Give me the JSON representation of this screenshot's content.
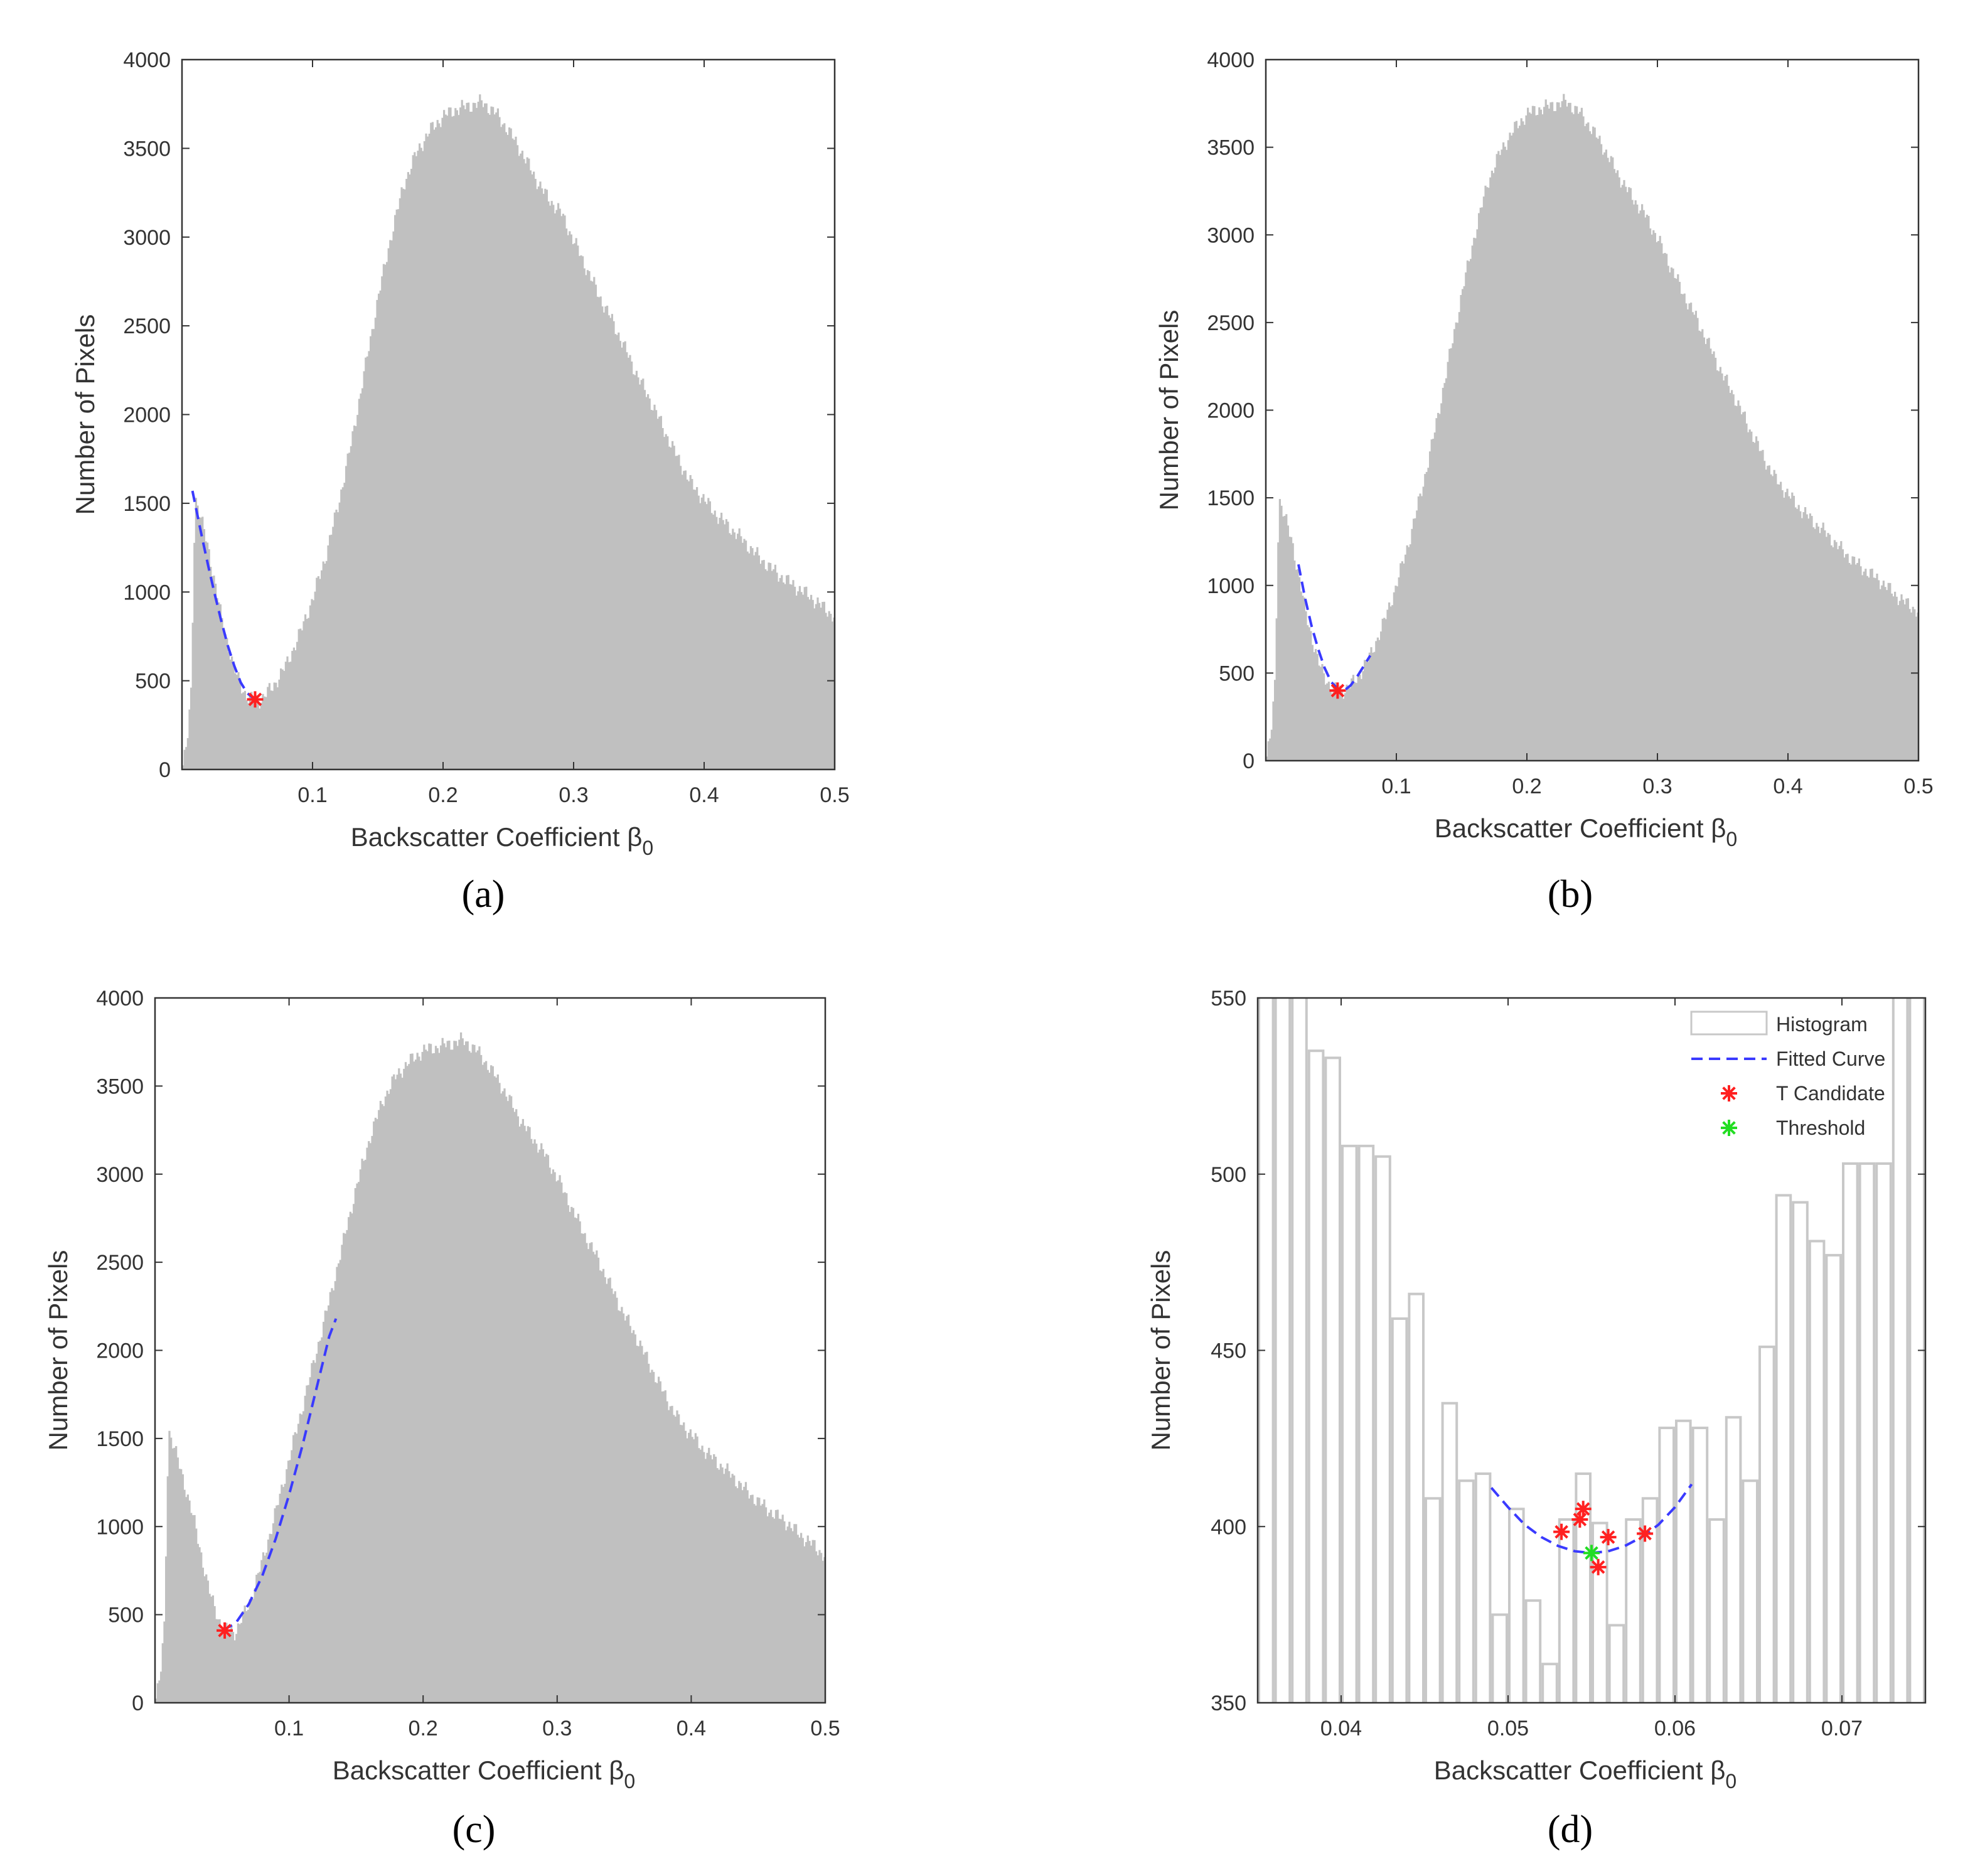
{
  "chart_data": [
    {
      "panel_label": "(a)",
      "type": "bar",
      "xlabel": "Backscatter Coefficient β",
      "xlabel_sub": "0",
      "ylabel": "Number of Pixels",
      "xlim": [
        0.0,
        0.5
      ],
      "ylim": [
        0,
        4000
      ],
      "xticks": [
        0.1,
        0.2,
        0.3,
        0.4,
        0.5
      ],
      "xtick_labels": [
        "0.1",
        "0.2",
        "0.3",
        "0.4",
        "0.5"
      ],
      "yticks": [
        0,
        500,
        1000,
        1500,
        2000,
        2500,
        3000,
        3500,
        4000
      ],
      "ytick_labels": [
        "0",
        "500",
        "1000",
        "1500",
        "2000",
        "2500",
        "3000",
        "3500",
        "4000"
      ],
      "bar_color": "#c0c0c0",
      "histogram_envelope": {
        "x": [
          0.0,
          0.004,
          0.007,
          0.01,
          0.02,
          0.03,
          0.04,
          0.05,
          0.06,
          0.07,
          0.08,
          0.09,
          0.1,
          0.11,
          0.12,
          0.13,
          0.14,
          0.15,
          0.16,
          0.17,
          0.18,
          0.19,
          0.2,
          0.21,
          0.22,
          0.23,
          0.24,
          0.25,
          0.26,
          0.27,
          0.28,
          0.29,
          0.3,
          0.31,
          0.32,
          0.33,
          0.34,
          0.35,
          0.36,
          0.37,
          0.38,
          0.39,
          0.4,
          0.41,
          0.42,
          0.43,
          0.44,
          0.45,
          0.46,
          0.47,
          0.48,
          0.49,
          0.5
        ],
        "y": [
          0,
          150,
          450,
          1540,
          1250,
          860,
          560,
          400,
          390,
          470,
          590,
          760,
          960,
          1200,
          1500,
          1850,
          2250,
          2650,
          3000,
          3300,
          3480,
          3600,
          3680,
          3720,
          3740,
          3760,
          3700,
          3600,
          3480,
          3340,
          3220,
          3140,
          2980,
          2820,
          2660,
          2520,
          2360,
          2200,
          2060,
          1900,
          1750,
          1610,
          1520,
          1430,
          1360,
          1290,
          1210,
          1140,
          1080,
          1030,
          980,
          920,
          860
        ]
      },
      "fitted_curve": {
        "color": "#3a3aff",
        "x": [
          0.008,
          0.015,
          0.02,
          0.025,
          0.03,
          0.035,
          0.04,
          0.045,
          0.05,
          0.055,
          0.06
        ],
        "y": [
          1570,
          1320,
          1150,
          990,
          840,
          700,
          585,
          490,
          430,
          400,
          395
        ]
      },
      "t_candidates": {
        "color": "#ff2020",
        "x": [
          0.056
        ],
        "y": [
          395
        ]
      }
    },
    {
      "panel_label": "(b)",
      "type": "bar",
      "xlabel": "Backscatter Coefficient β",
      "xlabel_sub": "0",
      "ylabel": "Number of Pixels",
      "xlim": [
        0.0,
        0.5
      ],
      "ylim": [
        0,
        4000
      ],
      "xticks": [
        0.1,
        0.2,
        0.3,
        0.4,
        0.5
      ],
      "xtick_labels": [
        "0.1",
        "0.2",
        "0.3",
        "0.4",
        "0.5"
      ],
      "yticks": [
        0,
        500,
        1000,
        1500,
        2000,
        2500,
        3000,
        3500,
        4000
      ],
      "ytick_labels": [
        "0",
        "500",
        "1000",
        "1500",
        "2000",
        "2500",
        "3000",
        "3500",
        "4000"
      ],
      "bar_color": "#c0c0c0",
      "histogram_envelope": {
        "x": [
          0.0,
          0.004,
          0.007,
          0.01,
          0.02,
          0.03,
          0.04,
          0.05,
          0.06,
          0.07,
          0.08,
          0.09,
          0.1,
          0.11,
          0.12,
          0.13,
          0.14,
          0.15,
          0.16,
          0.17,
          0.18,
          0.19,
          0.2,
          0.21,
          0.22,
          0.23,
          0.24,
          0.25,
          0.26,
          0.27,
          0.28,
          0.29,
          0.3,
          0.31,
          0.32,
          0.33,
          0.34,
          0.35,
          0.36,
          0.37,
          0.38,
          0.39,
          0.4,
          0.41,
          0.42,
          0.43,
          0.44,
          0.45,
          0.46,
          0.47,
          0.48,
          0.49,
          0.5
        ],
        "y": [
          0,
          150,
          450,
          1500,
          1250,
          860,
          560,
          410,
          400,
          470,
          600,
          780,
          1000,
          1260,
          1560,
          1900,
          2280,
          2660,
          3000,
          3300,
          3480,
          3600,
          3690,
          3720,
          3740,
          3760,
          3700,
          3600,
          3480,
          3340,
          3220,
          3120,
          2980,
          2820,
          2660,
          2520,
          2360,
          2200,
          2060,
          1900,
          1750,
          1610,
          1520,
          1430,
          1360,
          1290,
          1210,
          1140,
          1080,
          1030,
          960,
          900,
          850
        ]
      },
      "fitted_curve": {
        "color": "#3a3aff",
        "x": [
          0.025,
          0.03,
          0.035,
          0.04,
          0.045,
          0.05,
          0.055,
          0.06,
          0.065,
          0.07,
          0.075,
          0.08
        ],
        "y": [
          1120,
          930,
          770,
          640,
          530,
          450,
          410,
          400,
          430,
          480,
          540,
          600
        ]
      },
      "t_candidates": {
        "color": "#ff2020",
        "x": [
          0.055
        ],
        "y": [
          400
        ]
      }
    },
    {
      "panel_label": "(c)",
      "type": "bar",
      "xlabel": "Backscatter Coefficient β",
      "xlabel_sub": "0",
      "ylabel": "Number of Pixels",
      "xlim": [
        0.0,
        0.5
      ],
      "ylim": [
        0,
        4000
      ],
      "xticks": [
        0.1,
        0.2,
        0.3,
        0.4,
        0.5
      ],
      "xtick_labels": [
        "0.1",
        "0.2",
        "0.3",
        "0.4",
        "0.5"
      ],
      "yticks": [
        0,
        500,
        1000,
        1500,
        2000,
        2500,
        3000,
        3500,
        4000
      ],
      "ytick_labels": [
        "0",
        "500",
        "1000",
        "1500",
        "2000",
        "2500",
        "3000",
        "3500",
        "4000"
      ],
      "bar_color": "#c0c0c0",
      "histogram_envelope": {
        "x": [
          0.0,
          0.004,
          0.007,
          0.01,
          0.02,
          0.03,
          0.04,
          0.05,
          0.06,
          0.07,
          0.08,
          0.09,
          0.1,
          0.11,
          0.12,
          0.13,
          0.14,
          0.15,
          0.16,
          0.17,
          0.18,
          0.19,
          0.2,
          0.21,
          0.22,
          0.23,
          0.24,
          0.25,
          0.26,
          0.27,
          0.28,
          0.29,
          0.3,
          0.31,
          0.32,
          0.33,
          0.34,
          0.35,
          0.36,
          0.37,
          0.38,
          0.39,
          0.4,
          0.41,
          0.42,
          0.43,
          0.44,
          0.45,
          0.46,
          0.47,
          0.48,
          0.49,
          0.5
        ],
        "y": [
          0,
          150,
          450,
          1550,
          1300,
          1000,
          640,
          420,
          400,
          560,
          800,
          1080,
          1380,
          1680,
          1980,
          2280,
          2600,
          2920,
          3200,
          3420,
          3560,
          3640,
          3700,
          3720,
          3740,
          3760,
          3700,
          3600,
          3480,
          3340,
          3220,
          3120,
          2980,
          2820,
          2660,
          2520,
          2360,
          2200,
          2060,
          1900,
          1750,
          1610,
          1520,
          1430,
          1360,
          1290,
          1210,
          1140,
          1080,
          1030,
          960,
          900,
          830
        ]
      },
      "fitted_curve": {
        "color": "#3a3aff",
        "x": [
          0.05,
          0.06,
          0.07,
          0.08,
          0.09,
          0.1,
          0.11,
          0.12,
          0.13,
          0.135
        ],
        "y": [
          410,
          450,
          560,
          720,
          930,
          1180,
          1460,
          1770,
          2080,
          2180
        ]
      },
      "t_candidates": {
        "color": "#ff2020",
        "x": [
          0.052
        ],
        "y": [
          410
        ]
      }
    },
    {
      "panel_label": "(d)",
      "type": "bar",
      "xlabel": "Backscatter Coefficient β",
      "xlabel_sub": "0",
      "ylabel": "Number of Pixels",
      "xlim": [
        0.035,
        0.075
      ],
      "ylim": [
        350,
        550
      ],
      "xticks": [
        0.04,
        0.05,
        0.06,
        0.07
      ],
      "xtick_labels": [
        "0.04",
        "0.05",
        "0.06",
        "0.07"
      ],
      "yticks": [
        350,
        400,
        450,
        500,
        550
      ],
      "ytick_labels": [
        "350",
        "400",
        "450",
        "500",
        "550"
      ],
      "bar_edge_color": "#c8c8c8",
      "bins": {
        "width": 0.001,
        "x": [
          0.0355,
          0.0365,
          0.0375,
          0.0385,
          0.0395,
          0.0405,
          0.0415,
          0.0425,
          0.0435,
          0.0445,
          0.0455,
          0.0465,
          0.0475,
          0.0485,
          0.0495,
          0.0505,
          0.0515,
          0.0525,
          0.0535,
          0.0545,
          0.0555,
          0.0565,
          0.0575,
          0.0585,
          0.0595,
          0.0605,
          0.0615,
          0.0625,
          0.0635,
          0.0645,
          0.0655,
          0.0665,
          0.0675,
          0.0685,
          0.0695,
          0.0705,
          0.0715,
          0.0725,
          0.0735,
          0.0745
        ],
        "y": [
          560,
          560,
          560,
          535,
          533,
          508,
          508,
          505,
          459,
          466,
          408,
          435,
          413,
          415,
          375,
          405,
          379,
          361,
          402,
          415,
          401,
          372,
          402,
          408,
          428,
          430,
          428,
          402,
          431,
          413,
          451,
          494,
          492,
          481,
          477,
          503,
          503,
          503,
          560,
          560
        ]
      },
      "fitted_curve": {
        "color": "#3a3aff",
        "x": [
          0.049,
          0.05,
          0.051,
          0.052,
          0.053,
          0.054,
          0.055,
          0.056,
          0.057,
          0.058,
          0.059,
          0.06,
          0.061
        ],
        "y": [
          411,
          405.5,
          400.5,
          397,
          394.5,
          393,
          392.5,
          393,
          394.5,
          397,
          400.5,
          405.5,
          412
        ]
      },
      "t_candidates": {
        "color": "#ff2020",
        "x": [
          0.0532,
          0.0543,
          0.0545,
          0.0554,
          0.056,
          0.0582
        ],
        "y": [
          398.5,
          402,
          405,
          388.5,
          397,
          398
        ]
      },
      "threshold": {
        "color": "#22dd22",
        "x": [
          0.055
        ],
        "y": [
          392.5
        ]
      },
      "legend": {
        "position": "top-right",
        "items": [
          {
            "label": "Histogram",
            "marker": "box"
          },
          {
            "label": "Fitted Curve",
            "marker": "dashed"
          },
          {
            "label": "T Candidate",
            "marker": "red-star"
          },
          {
            "label": "Threshold",
            "marker": "green-star"
          }
        ]
      }
    }
  ]
}
